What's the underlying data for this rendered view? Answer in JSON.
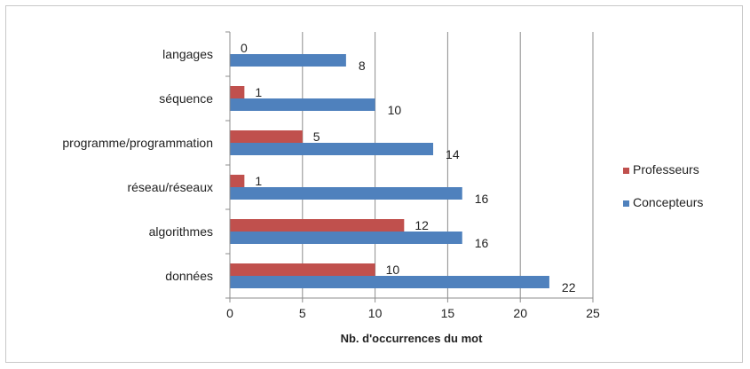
{
  "chart_data": {
    "type": "bar",
    "orientation": "horizontal",
    "categories": [
      "langages",
      "séquence",
      "programme/programmation",
      "réseau/réseaux",
      "algorithmes",
      "données"
    ],
    "series": [
      {
        "name": "Professeurs",
        "values": [
          0,
          1,
          5,
          1,
          12,
          10
        ],
        "color": "#c0504d"
      },
      {
        "name": "Concepteurs",
        "values": [
          8,
          10,
          14,
          16,
          16,
          22
        ],
        "color": "#4f81bd"
      }
    ],
    "xlabel": "Nb. d'occurrences du mot",
    "ylabel": "",
    "xlim": [
      0,
      25
    ],
    "xticks": [
      0,
      5,
      10,
      15,
      20,
      25
    ],
    "grid": "vertical",
    "legend": "right",
    "data_labels": true
  }
}
